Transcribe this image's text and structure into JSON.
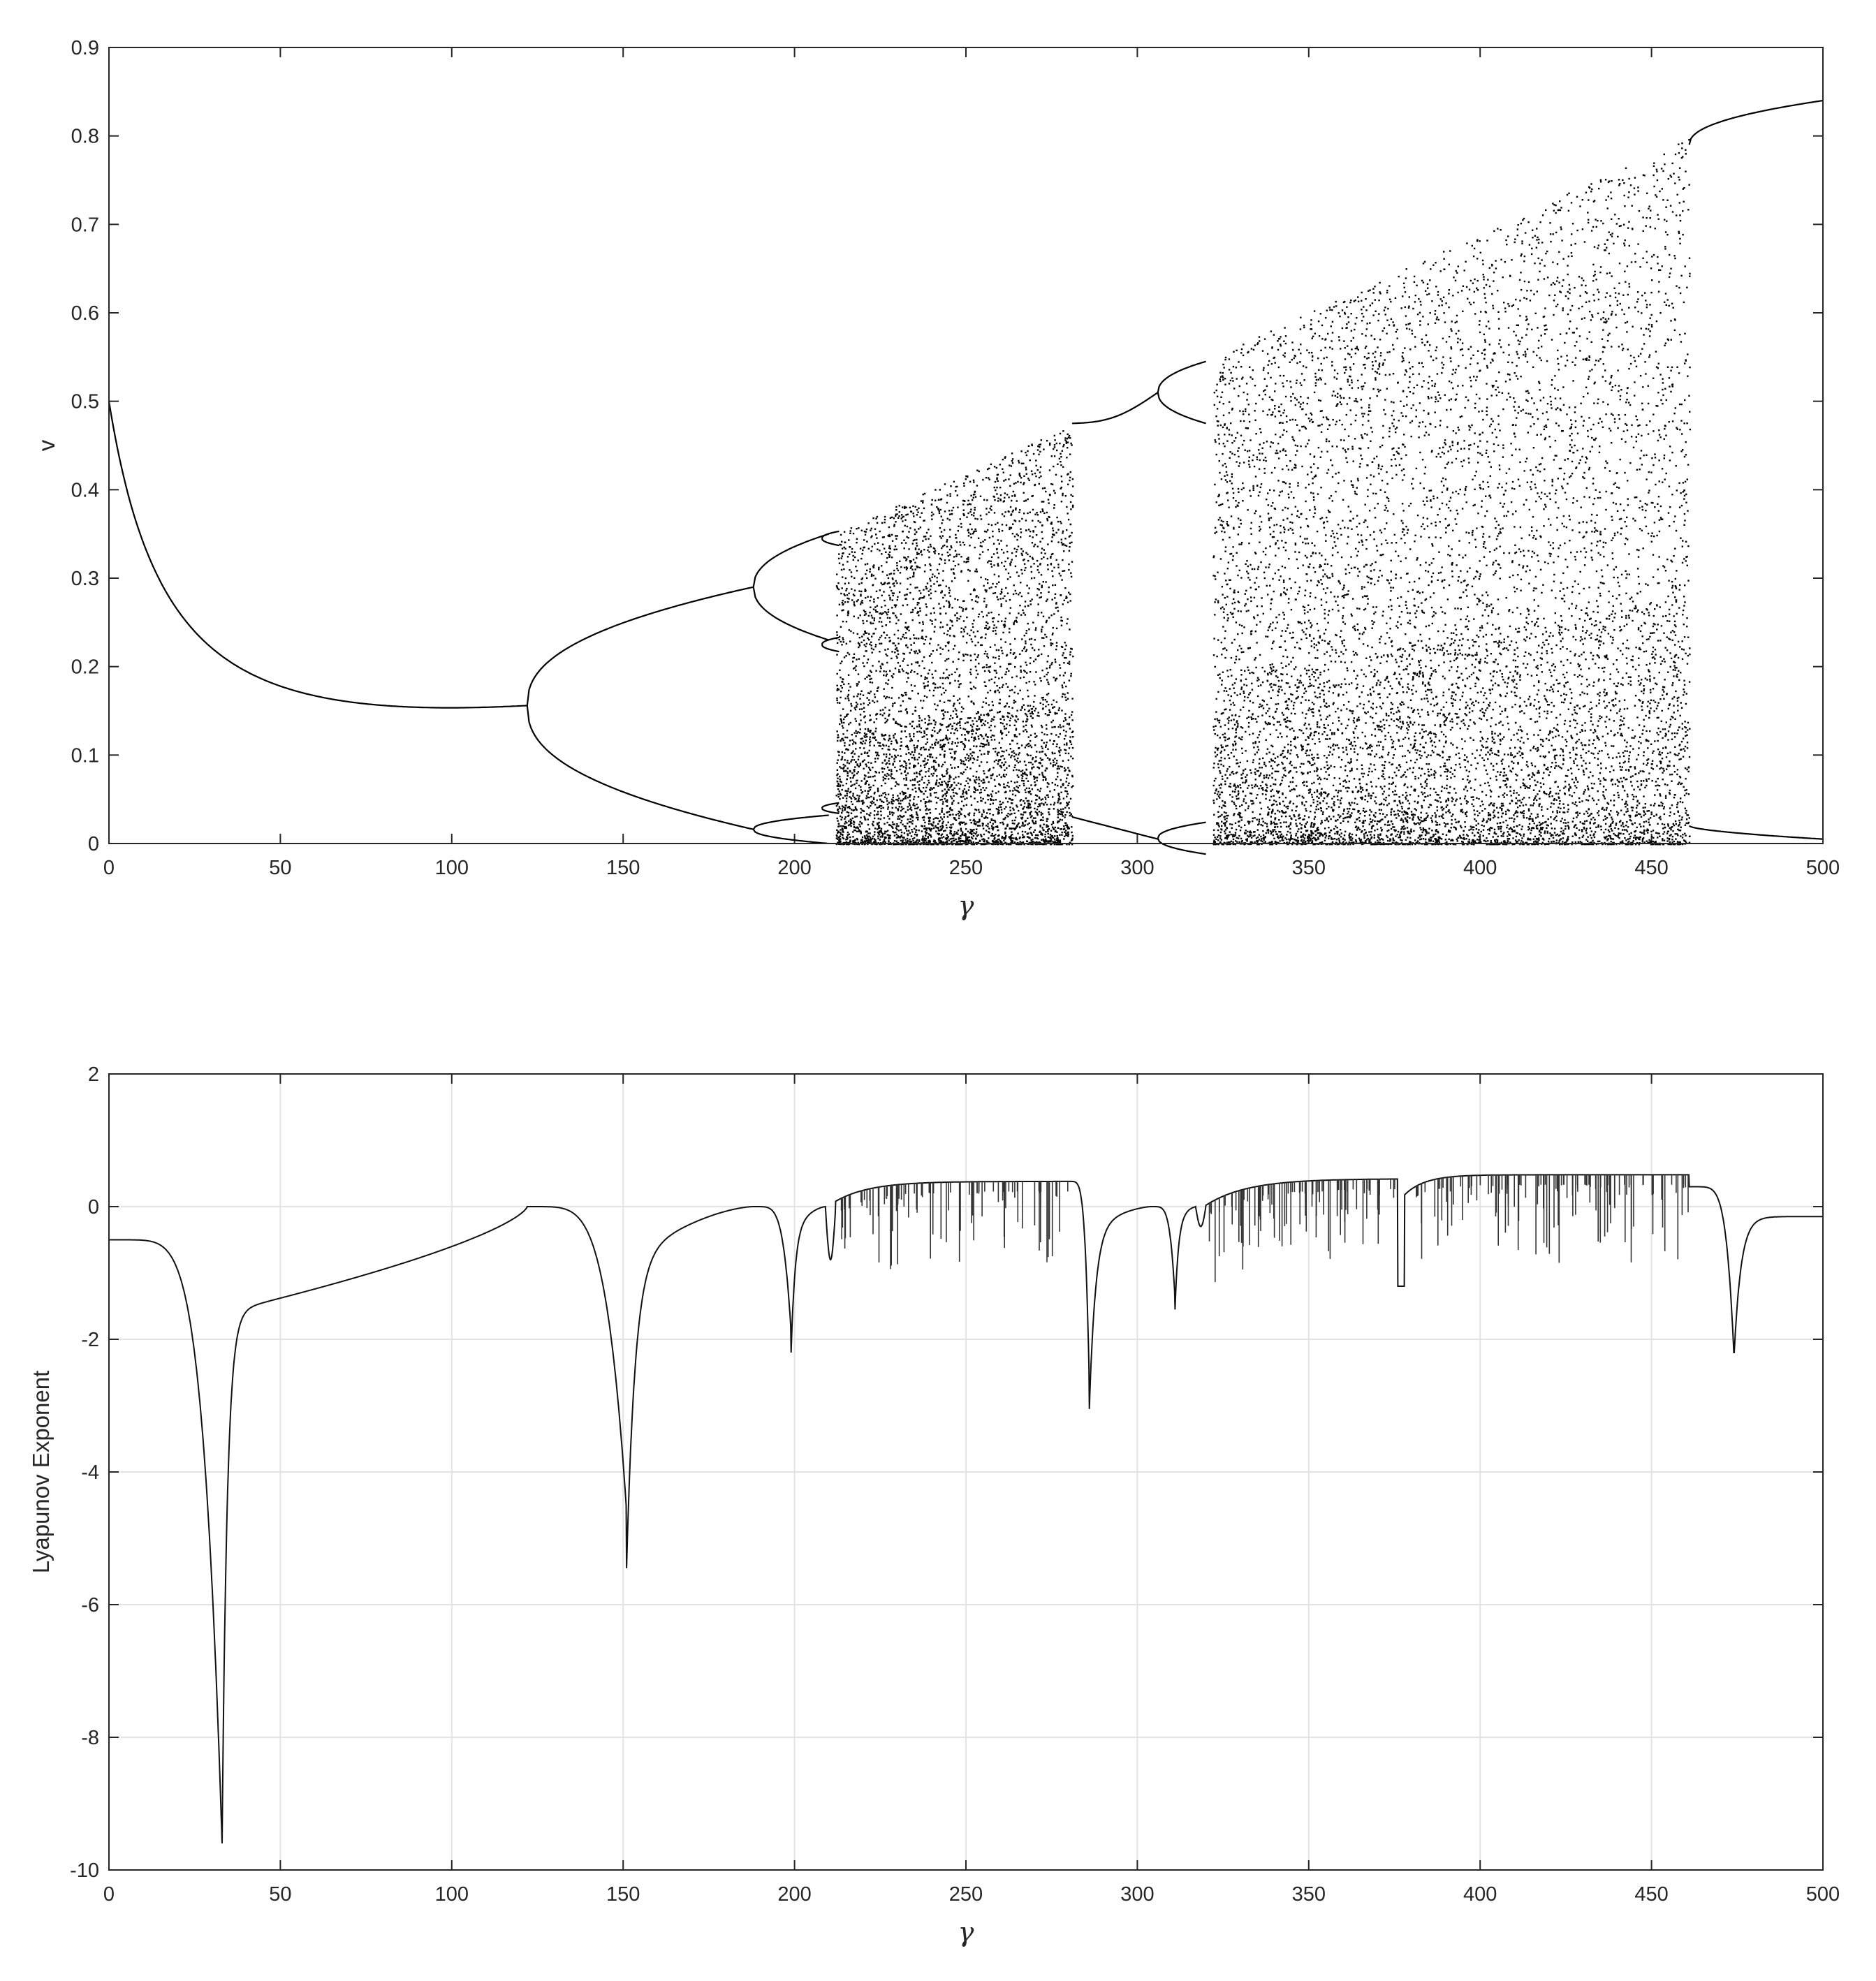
{
  "chart_data": [
    {
      "type": "scatter",
      "title": "",
      "xlabel": "γ",
      "ylabel": "v",
      "xlim": [
        0,
        500
      ],
      "ylim": [
        0,
        0.9
      ],
      "xticks": [
        "0",
        "50",
        "100",
        "150",
        "200",
        "250",
        "300",
        "350",
        "400",
        "450",
        "500"
      ],
      "yticks": [
        "0",
        "0.1",
        "0.2",
        "0.3",
        "0.4",
        "0.5",
        "0.6",
        "0.7",
        "0.8",
        "0.9"
      ],
      "grid": false,
      "marker_color": "#000000",
      "description_points": {
        "fixed_branch": [
          [
            0,
            0.5
          ],
          [
            25,
            0.27
          ],
          [
            50,
            0.21
          ],
          [
            100,
            0.166
          ],
          [
            122,
            0.156
          ]
        ],
        "period2_upper": [
          [
            122,
            0.156
          ],
          [
            150,
            0.262
          ],
          [
            188,
            0.29
          ]
        ],
        "period2_lower": [
          [
            122,
            0.156
          ],
          [
            150,
            0.04
          ],
          [
            188,
            0.016
          ]
        ],
        "period4_points": [
          [
            200,
            0.33
          ],
          [
            200,
            0.25
          ],
          [
            200,
            0.03
          ],
          [
            200,
            0.005
          ],
          [
            210,
            0.34
          ],
          [
            210,
            0.22
          ]
        ],
        "chaos_band_1": {
          "x_range": [
            212,
            281
          ],
          "upper_envelope": [
            [
              212,
              0.35
            ],
            [
              245,
              0.41
            ],
            [
              281,
              0.475
            ]
          ],
          "lower_envelope": 0
        },
        "periodic_window": {
          "x_range": [
            281,
            306
          ],
          "upper": [
            [
              281,
              0.475
            ],
            [
              306,
              0.51
            ]
          ],
          "lower": [
            [
              281,
              0.03
            ],
            [
              306,
              0.005
            ]
          ]
        },
        "period2_window_2": {
          "x_range": [
            306,
            320
          ],
          "upper": [
            [
              306,
              0.51
            ],
            [
              320,
              0.53
            ]
          ],
          "lower": [
            [
              306,
              0.005
            ],
            [
              320,
              0.02
            ]
          ]
        },
        "chaos_band_2": {
          "x_range": [
            322,
            461
          ],
          "upper_envelope": [
            [
              322,
              0.55
            ],
            [
              376,
              0.665
            ],
            [
              461,
              0.8
            ]
          ],
          "lower_envelope": 0
        },
        "final_branch": [
          [
            461,
            0.79
          ],
          [
            480,
            0.825
          ],
          [
            500,
            0.84
          ]
        ],
        "final_branch_lower": [
          [
            461,
            0.02
          ],
          [
            480,
            0.008
          ],
          [
            500,
            0.005
          ]
        ]
      }
    },
    {
      "type": "line",
      "title": "",
      "xlabel": "γ",
      "ylabel": "Lyapunov Exponent",
      "xlim": [
        0,
        500
      ],
      "ylim": [
        -10,
        2
      ],
      "xticks": [
        "0",
        "50",
        "100",
        "150",
        "200",
        "250",
        "300",
        "350",
        "400",
        "450",
        "500"
      ],
      "yticks": [
        "-10",
        "-8",
        "-6",
        "-4",
        "-2",
        "0",
        "2"
      ],
      "grid": true,
      "line_color": "#000000",
      "key_points": {
        "start": [
          0,
          -0.5
        ],
        "dips": [
          {
            "x": 33,
            "y": -9.6
          },
          {
            "x": 151,
            "y": -4.65
          },
          {
            "x": 199,
            "y": -1.9
          },
          {
            "x": 286,
            "y": -2.75
          },
          {
            "x": 311,
            "y": -1.4
          },
          {
            "x": 474,
            "y": -2.2
          }
        ],
        "zeros": [
          122,
          188,
          209,
          304,
          317
        ],
        "chaotic_plateaus": [
          {
            "x_range": [
              212,
              280
            ],
            "level": 0.38
          },
          {
            "x_range": [
              320,
              376
            ],
            "level": 0.42
          },
          {
            "x_range": [
              378,
              461
            ],
            "level": 0.48
          }
        ],
        "end": [
          500,
          -0.15
        ]
      }
    }
  ]
}
